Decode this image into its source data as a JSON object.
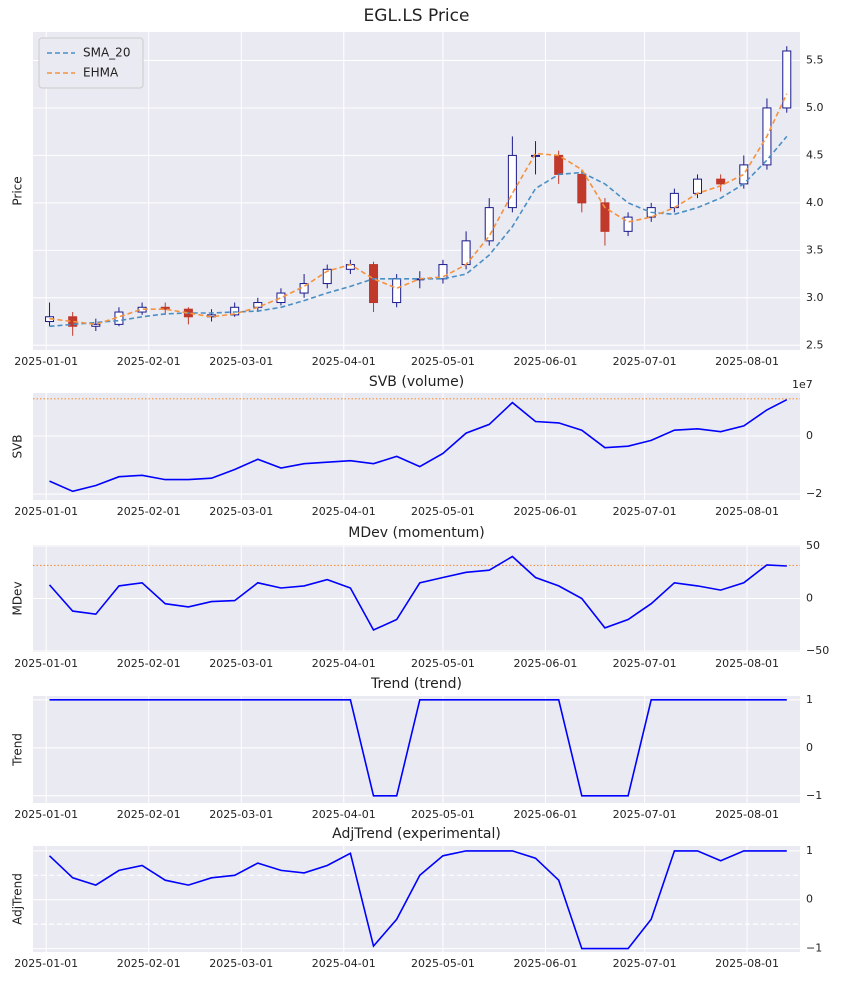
{
  "chart_data": [
    {
      "type": "candlestick",
      "title": "EGL.LS Price",
      "ylabel": "Price",
      "x": [
        "2025-01-02",
        "2025-01-09",
        "2025-01-16",
        "2025-01-23",
        "2025-01-30",
        "2025-02-06",
        "2025-02-13",
        "2025-02-20",
        "2025-02-27",
        "2025-03-06",
        "2025-03-13",
        "2025-03-20",
        "2025-03-27",
        "2025-04-03",
        "2025-04-10",
        "2025-04-17",
        "2025-04-24",
        "2025-05-01",
        "2025-05-08",
        "2025-05-15",
        "2025-05-22",
        "2025-05-29",
        "2025-06-05",
        "2025-06-12",
        "2025-06-19",
        "2025-06-26",
        "2025-07-03",
        "2025-07-10",
        "2025-07-17",
        "2025-07-24",
        "2025-07-31",
        "2025-08-07",
        "2025-08-13"
      ],
      "open": [
        2.75,
        2.8,
        2.7,
        2.72,
        2.85,
        2.9,
        2.88,
        2.8,
        2.82,
        2.9,
        2.95,
        3.05,
        3.15,
        3.3,
        3.35,
        2.95,
        3.2,
        3.2,
        3.35,
        3.6,
        3.95,
        4.5,
        4.5,
        4.3,
        4.0,
        3.7,
        3.85,
        3.95,
        4.1,
        4.25,
        4.2,
        4.4,
        5.0
      ],
      "high": [
        2.95,
        2.85,
        2.78,
        2.9,
        2.95,
        2.95,
        2.9,
        2.88,
        2.95,
        3.0,
        3.1,
        3.25,
        3.35,
        3.4,
        3.38,
        3.25,
        3.28,
        3.4,
        3.7,
        4.05,
        4.7,
        4.65,
        4.55,
        4.35,
        4.05,
        3.9,
        4.0,
        4.15,
        4.3,
        4.3,
        4.5,
        5.1,
        5.65
      ],
      "low": [
        2.7,
        2.6,
        2.65,
        2.7,
        2.82,
        2.82,
        2.72,
        2.75,
        2.8,
        2.85,
        2.92,
        3.0,
        3.1,
        3.25,
        2.85,
        2.9,
        3.1,
        3.15,
        3.3,
        3.55,
        3.9,
        4.3,
        4.2,
        3.9,
        3.55,
        3.65,
        3.8,
        3.9,
        4.05,
        4.12,
        4.15,
        4.35,
        4.95
      ],
      "close": [
        2.8,
        2.7,
        2.72,
        2.85,
        2.9,
        2.88,
        2.8,
        2.82,
        2.9,
        2.95,
        3.05,
        3.15,
        3.3,
        3.35,
        2.95,
        3.2,
        3.2,
        3.35,
        3.6,
        3.95,
        4.5,
        4.5,
        4.3,
        4.0,
        3.7,
        3.85,
        3.95,
        4.1,
        4.25,
        4.2,
        4.4,
        5.0,
        5.6
      ],
      "up_color": "#1a1a8c",
      "down_color": "#c0392b",
      "series": [
        {
          "name": "SMA_20",
          "color": "#4a8fc4",
          "style": "dashed",
          "values": [
            2.7,
            2.72,
            2.74,
            2.76,
            2.8,
            2.83,
            2.84,
            2.84,
            2.85,
            2.86,
            2.9,
            2.97,
            3.05,
            3.12,
            3.2,
            3.2,
            3.2,
            3.2,
            3.25,
            3.45,
            3.75,
            4.15,
            4.3,
            4.32,
            4.2,
            4.0,
            3.9,
            3.88,
            3.95,
            4.05,
            4.2,
            4.45,
            4.7
          ]
        },
        {
          "name": "EHMA",
          "color": "#f5923e",
          "style": "dashed",
          "values": [
            2.78,
            2.75,
            2.72,
            2.8,
            2.88,
            2.88,
            2.84,
            2.8,
            2.83,
            2.9,
            3.0,
            3.12,
            3.28,
            3.35,
            3.2,
            3.1,
            3.2,
            3.22,
            3.35,
            3.65,
            4.1,
            4.52,
            4.5,
            4.35,
            3.95,
            3.8,
            3.85,
            3.95,
            4.1,
            4.18,
            4.3,
            4.7,
            5.15
          ]
        }
      ],
      "legend": "upper left",
      "xlim": [
        "2024-12-28",
        "2025-08-17"
      ],
      "xticks": [
        "2025-01-01",
        "2025-02-01",
        "2025-03-01",
        "2025-04-01",
        "2025-05-01",
        "2025-06-01",
        "2025-07-01",
        "2025-08-01"
      ],
      "ylim": [
        2.45,
        5.8
      ],
      "yticks": [
        2.5,
        {
          "value": 3,
          "label": "3.0"
        },
        3.5,
        {
          "value": 4,
          "label": "4.0"
        },
        4.5,
        {
          "value": 5,
          "label": "5.0"
        },
        5.5
      ],
      "grid": true
    },
    {
      "type": "line",
      "title": "SVB (volume)",
      "ylabel": "SVB",
      "offset_label": "1e7",
      "x": [
        "2025-01-02",
        "2025-01-09",
        "2025-01-16",
        "2025-01-23",
        "2025-01-30",
        "2025-02-06",
        "2025-02-13",
        "2025-02-20",
        "2025-02-27",
        "2025-03-06",
        "2025-03-13",
        "2025-03-20",
        "2025-03-27",
        "2025-04-03",
        "2025-04-10",
        "2025-04-17",
        "2025-04-24",
        "2025-05-01",
        "2025-05-08",
        "2025-05-15",
        "2025-05-22",
        "2025-05-29",
        "2025-06-05",
        "2025-06-12",
        "2025-06-19",
        "2025-06-26",
        "2025-07-03",
        "2025-07-10",
        "2025-07-17",
        "2025-07-24",
        "2025-07-31",
        "2025-08-07",
        "2025-08-13"
      ],
      "series": [
        {
          "color": "#0000ff",
          "values": [
            -15500000,
            -19000000,
            -17000000,
            -14000000,
            -13500000,
            -15000000,
            -15000000,
            -14500000,
            -11500000,
            -8000000,
            -11000000,
            -9500000,
            -9000000,
            -8500000,
            -9500000,
            -7000000,
            -10500000,
            -6000000,
            1000000,
            4000000,
            11500000,
            5000000,
            4500000,
            2000000,
            -4000000,
            -3500000,
            -1500000,
            2000000,
            2500000,
            1500000,
            3500000,
            9000000,
            12500000
          ]
        }
      ],
      "reference_lines": [
        {
          "value": 12800000,
          "color": "#f5923e",
          "style": "dotted"
        }
      ],
      "xlim": [
        "2024-12-28",
        "2025-08-17"
      ],
      "xticks": [
        "2025-01-01",
        "2025-02-01",
        "2025-03-01",
        "2025-04-01",
        "2025-05-01",
        "2025-06-01",
        "2025-07-01",
        "2025-08-01"
      ],
      "ylim": [
        -22000000,
        14800000
      ],
      "yticks": [
        {
          "value": -20000000,
          "label": "−2"
        },
        0
      ],
      "grid": true
    },
    {
      "type": "line",
      "title": "MDev (momentum)",
      "ylabel": "MDev",
      "x": [
        "2025-01-02",
        "2025-01-09",
        "2025-01-16",
        "2025-01-23",
        "2025-01-30",
        "2025-02-06",
        "2025-02-13",
        "2025-02-20",
        "2025-02-27",
        "2025-03-06",
        "2025-03-13",
        "2025-03-20",
        "2025-03-27",
        "2025-04-03",
        "2025-04-10",
        "2025-04-17",
        "2025-04-24",
        "2025-05-01",
        "2025-05-08",
        "2025-05-15",
        "2025-05-22",
        "2025-05-29",
        "2025-06-05",
        "2025-06-12",
        "2025-06-19",
        "2025-06-26",
        "2025-07-03",
        "2025-07-10",
        "2025-07-17",
        "2025-07-24",
        "2025-07-31",
        "2025-08-07",
        "2025-08-13"
      ],
      "series": [
        {
          "color": "#0000ff",
          "values": [
            13,
            -12,
            -15,
            12,
            15,
            -5,
            -8,
            -3,
            -2,
            15,
            10,
            12,
            18,
            10,
            -30,
            -20,
            15,
            20,
            25,
            27,
            40,
            20,
            12,
            0,
            -28,
            -20,
            -5,
            15,
            12,
            8,
            15,
            32,
            31
          ]
        }
      ],
      "reference_lines": [
        {
          "value": 31.5,
          "color": "#f5923e",
          "style": "dotted"
        }
      ],
      "xlim": [
        "2024-12-28",
        "2025-08-17"
      ],
      "xticks": [
        "2025-01-01",
        "2025-02-01",
        "2025-03-01",
        "2025-04-01",
        "2025-05-01",
        "2025-06-01",
        "2025-07-01",
        "2025-08-01"
      ],
      "ylim": [
        -51,
        51
      ],
      "yticks": [
        {
          "value": -50,
          "label": "−50"
        },
        0,
        50
      ],
      "grid": true
    },
    {
      "type": "line",
      "title": "Trend (trend)",
      "ylabel": "Trend",
      "x": [
        "2025-01-02",
        "2025-01-09",
        "2025-01-16",
        "2025-01-23",
        "2025-01-30",
        "2025-02-06",
        "2025-02-13",
        "2025-02-20",
        "2025-02-27",
        "2025-03-06",
        "2025-03-13",
        "2025-03-20",
        "2025-03-27",
        "2025-04-03",
        "2025-04-10",
        "2025-04-17",
        "2025-04-24",
        "2025-05-01",
        "2025-05-08",
        "2025-05-15",
        "2025-05-22",
        "2025-05-29",
        "2025-06-05",
        "2025-06-12",
        "2025-06-19",
        "2025-06-26",
        "2025-07-03",
        "2025-07-10",
        "2025-07-17",
        "2025-07-24",
        "2025-07-31",
        "2025-08-07",
        "2025-08-13"
      ],
      "series": [
        {
          "color": "#0000ff",
          "values": [
            1,
            1,
            1,
            1,
            1,
            1,
            1,
            1,
            1,
            1,
            1,
            1,
            1,
            1,
            -1,
            -1,
            1,
            1,
            1,
            1,
            1,
            1,
            1,
            -1,
            -1,
            -1,
            1,
            1,
            1,
            1,
            1,
            1,
            1
          ]
        }
      ],
      "xlim": [
        "2024-12-28",
        "2025-08-17"
      ],
      "xticks": [
        "2025-01-01",
        "2025-02-01",
        "2025-03-01",
        "2025-04-01",
        "2025-05-01",
        "2025-06-01",
        "2025-07-01",
        "2025-08-01"
      ],
      "ylim": [
        -1.15,
        1.08
      ],
      "yticks": [
        {
          "value": -1,
          "label": "−1"
        },
        0,
        1
      ],
      "grid": true
    },
    {
      "type": "line",
      "title": "AdjTrend (experimental)",
      "ylabel": "AdjTrend",
      "x": [
        "2025-01-02",
        "2025-01-09",
        "2025-01-16",
        "2025-01-23",
        "2025-01-30",
        "2025-02-06",
        "2025-02-13",
        "2025-02-20",
        "2025-02-27",
        "2025-03-06",
        "2025-03-13",
        "2025-03-20",
        "2025-03-27",
        "2025-04-03",
        "2025-04-10",
        "2025-04-17",
        "2025-04-24",
        "2025-05-01",
        "2025-05-08",
        "2025-05-15",
        "2025-05-22",
        "2025-05-29",
        "2025-06-05",
        "2025-06-12",
        "2025-06-19",
        "2025-06-26",
        "2025-07-03",
        "2025-07-10",
        "2025-07-17",
        "2025-07-24",
        "2025-07-31",
        "2025-08-07",
        "2025-08-13"
      ],
      "series": [
        {
          "color": "#0000ff",
          "values": [
            0.9,
            0.45,
            0.3,
            0.6,
            0.7,
            0.4,
            0.3,
            0.45,
            0.5,
            0.75,
            0.6,
            0.55,
            0.7,
            0.95,
            -0.95,
            -0.4,
            0.5,
            0.9,
            1,
            1,
            1,
            0.85,
            0.4,
            -1,
            -1,
            -1,
            -0.4,
            1,
            1,
            0.8,
            1,
            1,
            1
          ]
        }
      ],
      "reference_lines": [
        {
          "value": 0.5,
          "color": "#ffffff",
          "style": "dashed"
        },
        {
          "value": -0.5,
          "color": "#ffffff",
          "style": "dashed"
        }
      ],
      "xlim": [
        "2024-12-28",
        "2025-08-17"
      ],
      "xticks": [
        "2025-01-01",
        "2025-02-01",
        "2025-03-01",
        "2025-04-01",
        "2025-05-01",
        "2025-06-01",
        "2025-07-01",
        "2025-08-01"
      ],
      "ylim": [
        -1.07,
        1.1
      ],
      "yticks": [
        {
          "value": -1,
          "label": "−1"
        },
        0,
        1
      ],
      "grid": true
    }
  ]
}
